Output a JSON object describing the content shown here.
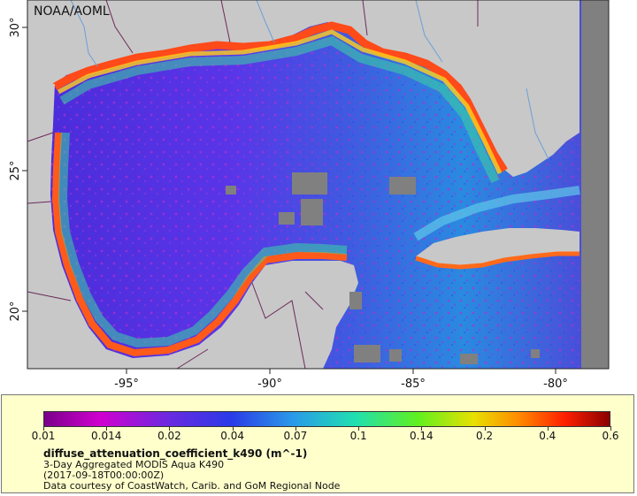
{
  "map": {
    "watermark": "NOAA/AOML",
    "lon_labels": [
      "-95°",
      "-90°",
      "-85°",
      "-80°"
    ],
    "lat_labels": [
      "30°",
      "25°",
      "20°"
    ],
    "colors": {
      "land": "#c8c8c8",
      "no_data": "#808080",
      "border": "#6b2a5a"
    }
  },
  "legend": {
    "scale_labels": [
      "0.01",
      "0.014",
      "0.02",
      "0.04",
      "0.07",
      "0.1",
      "0.14",
      "0.2",
      "0.4",
      "0.6"
    ],
    "variable": "diffuse_attenuation_coefficient_k490 (m^-1)",
    "title": "3-Day Aggregated MODIS Aqua K490",
    "time": "(2017-09-18T00:00:00Z)",
    "credit": "Data courtesy of CoastWatch, Carib. and GoM Regional Node"
  }
}
